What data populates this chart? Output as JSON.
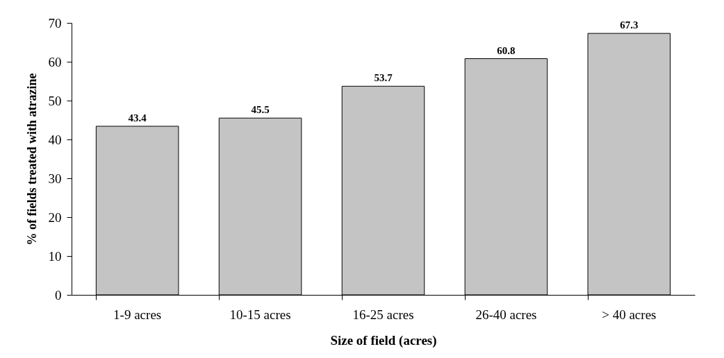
{
  "chart_data": {
    "type": "bar",
    "xlabel": "Size of field (acres)",
    "ylabel": "% of fields treated with atrazine",
    "categories": [
      "1-9 acres",
      "10-15 acres",
      "16-25 acres",
      "26-40 acres",
      "> 40 acres"
    ],
    "values": [
      43.4,
      45.5,
      53.7,
      60.8,
      67.3
    ],
    "color": "#c4c4c4",
    "ylim": [
      0,
      70
    ],
    "yticks": [
      0,
      10,
      20,
      30,
      40,
      50,
      60,
      70
    ],
    "grid": false,
    "data_labels": true
  }
}
